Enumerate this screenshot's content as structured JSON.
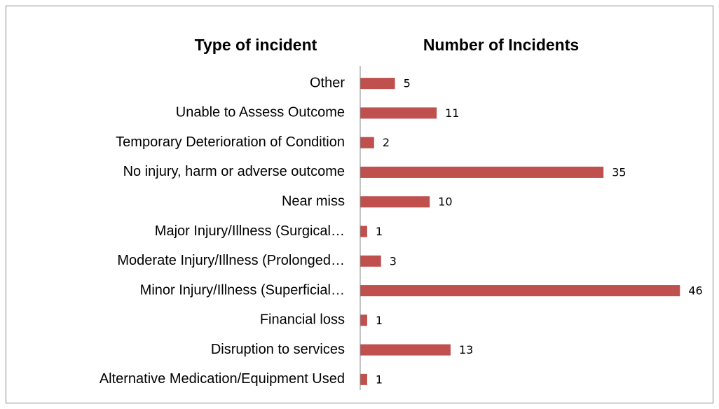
{
  "chart_data": {
    "type": "bar",
    "orientation": "horizontal",
    "title": "Number of Incidents",
    "category_header": "Type of incident",
    "categories": [
      "Other",
      "Unable to Assess Outcome",
      "Temporary Deterioration of Condition",
      "No injury, harm or adverse outcome",
      "Near miss",
      "Major Injury/Illness (Surgical…",
      "Moderate Injury/Illness (Prolonged…",
      "Minor Injury/Illness (Superficial…",
      "Financial loss",
      "Disruption to services",
      "Alternative Medication/Equipment Used"
    ],
    "values": [
      5,
      11,
      2,
      35,
      10,
      1,
      3,
      46,
      1,
      13,
      1
    ],
    "color": "#c0504d",
    "xlim": [
      0,
      50
    ]
  }
}
